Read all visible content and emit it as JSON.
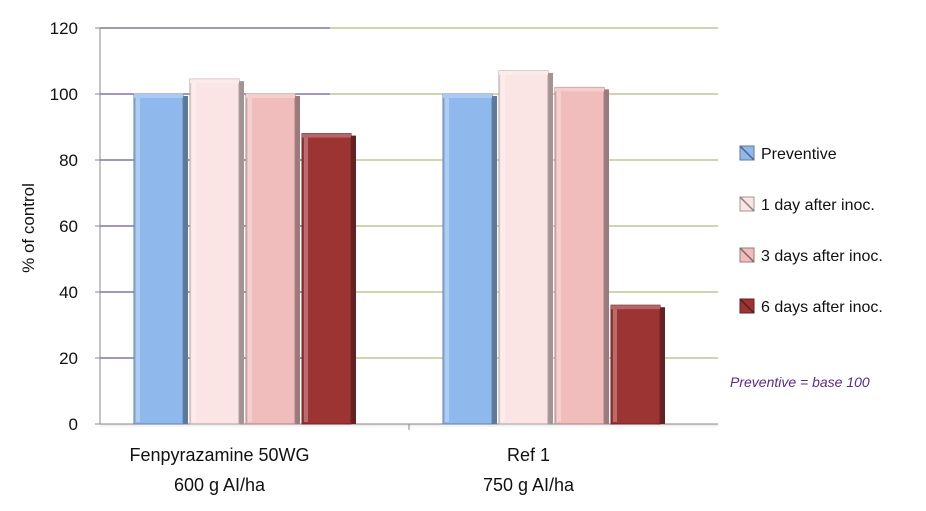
{
  "chart_data": {
    "type": "bar",
    "categories": [
      [
        "Fenpyrazamine 50WG",
        "600 g AI/ha"
      ],
      [
        "Ref 1",
        "750 g AI/ha"
      ]
    ],
    "series": [
      {
        "name": "Preventive",
        "values": [
          100,
          100
        ],
        "color": "#8fb8ec"
      },
      {
        "name": "1 day after inoc.",
        "values": [
          104.5,
          107
        ],
        "color": "#fbe4e4"
      },
      {
        "name": "3 days after inoc.",
        "values": [
          100,
          102
        ],
        "color": "#f0bcbc"
      },
      {
        "name": "6 days after inoc.",
        "values": [
          88,
          36
        ],
        "color": "#9c3434"
      }
    ],
    "ylabel": "% of control",
    "xlabel": "",
    "ylim": [
      0,
      120
    ],
    "yticks": [
      0,
      20,
      40,
      60,
      80,
      100,
      120
    ],
    "grid": true,
    "legend_position": "right",
    "annotation": "Preventive = base 100"
  }
}
